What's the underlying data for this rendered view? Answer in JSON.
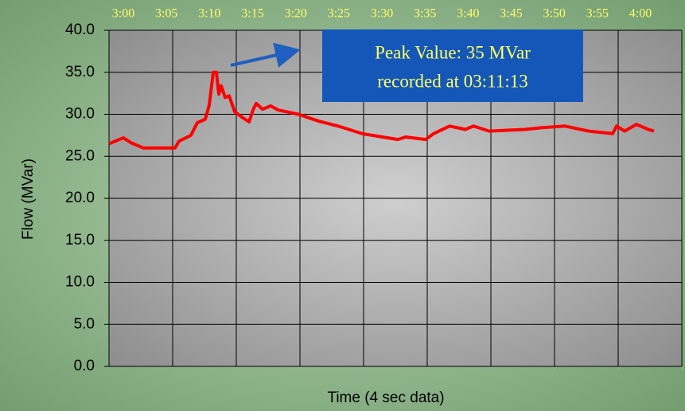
{
  "chart_data": {
    "type": "line",
    "x_label": "Time (4 sec data)",
    "y_label": "Flow (MVar)",
    "annotation": [
      "Peak Value: 35 MVar",
      "recorded at 03:11:13"
    ],
    "xlim": [
      0,
      60
    ],
    "xticks": [
      {
        "value": 0,
        "label": "3:00"
      },
      {
        "value": 5,
        "label": "3:05"
      },
      {
        "value": 10,
        "label": "3:10"
      },
      {
        "value": 15,
        "label": "3:15"
      },
      {
        "value": 20,
        "label": "3:20"
      },
      {
        "value": 25,
        "label": "3:25"
      },
      {
        "value": 30,
        "label": "3:30"
      },
      {
        "value": 35,
        "label": "3:35"
      },
      {
        "value": 40,
        "label": "3:40"
      },
      {
        "value": 45,
        "label": "3:45"
      },
      {
        "value": 50,
        "label": "3:50"
      },
      {
        "value": 55,
        "label": "3:55"
      },
      {
        "value": 60,
        "label": "4:00"
      }
    ],
    "ylim": [
      0,
      40
    ],
    "yticks": [
      {
        "value": 0,
        "label": "0.0"
      },
      {
        "value": 5,
        "label": "5.0"
      },
      {
        "value": 10,
        "label": "10.0"
      },
      {
        "value": 15,
        "label": "15.0"
      },
      {
        "value": 20,
        "label": "20.0"
      },
      {
        "value": 25,
        "label": "25.0"
      },
      {
        "value": 30,
        "label": "30.0"
      },
      {
        "value": 35,
        "label": "35.0"
      },
      {
        "value": 40,
        "label": "40.0"
      }
    ],
    "grid": true,
    "series": [
      {
        "color": "#ff0000",
        "x": [
          0,
          1.5,
          2.33,
          3.58,
          6.92,
          7.33,
          8.58,
          9.25,
          10.08,
          10.5,
          10.92,
          11.25,
          11.5,
          11.75,
          12.17,
          12.58,
          13.17,
          14.0,
          14.67,
          15.08,
          15.42,
          16.08,
          16.92,
          17.75,
          19.83,
          21.92,
          24.0,
          26.5,
          30.25,
          31.08,
          33.17,
          34.0,
          35.67,
          37.33,
          38.17,
          39.83,
          43.58,
          45.25,
          47.75,
          50.25,
          52.75,
          53.17,
          54.0,
          55.25,
          56.5,
          57.08
        ],
        "values": [
          26.5,
          27.2,
          26.6,
          26.0,
          26.0,
          26.8,
          27.5,
          29.0,
          29.4,
          31.1,
          35.0,
          35.0,
          32.4,
          33.4,
          32.0,
          32.2,
          30.3,
          29.6,
          29.1,
          30.5,
          31.3,
          30.6,
          31.0,
          30.5,
          30.0,
          29.2,
          28.6,
          27.7,
          27.0,
          27.3,
          27.0,
          27.7,
          28.6,
          28.2,
          28.6,
          28.0,
          28.2,
          28.4,
          28.6,
          28.0,
          27.7,
          28.6,
          28.0,
          28.8,
          28.2,
          28.0
        ]
      }
    ]
  }
}
